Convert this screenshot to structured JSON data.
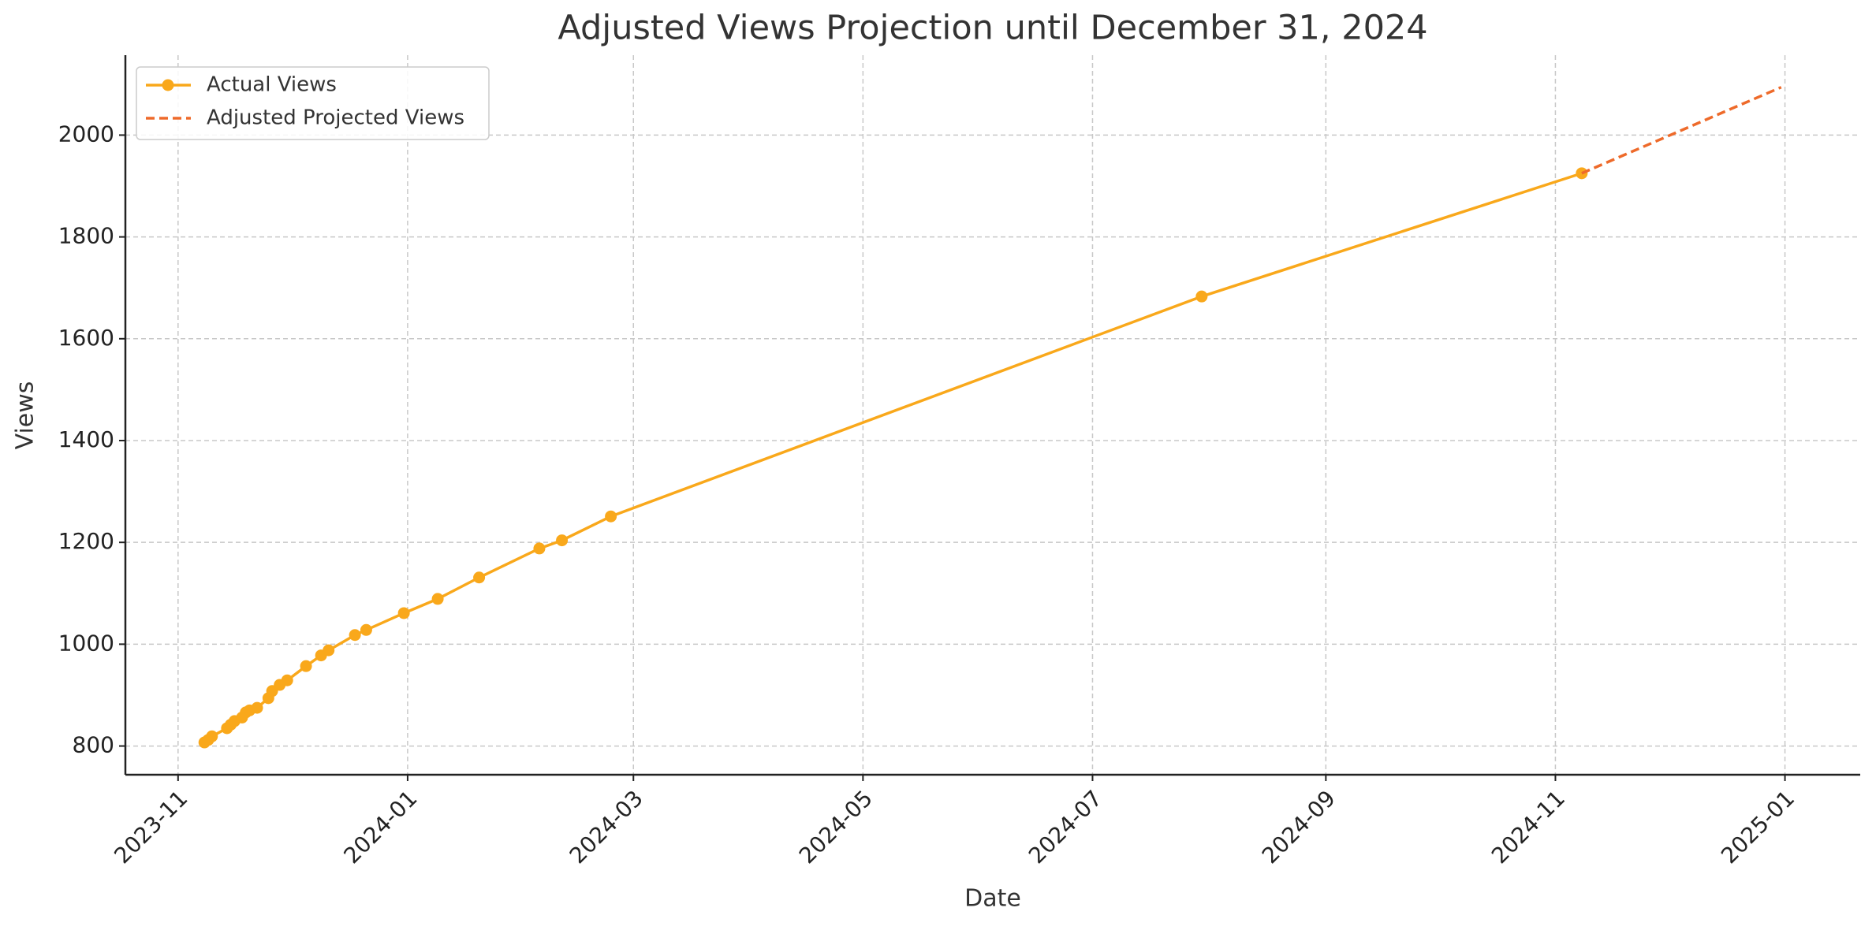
{
  "chart_data": {
    "type": "line",
    "title": "Adjusted Views Projection until December 31, 2024",
    "xlabel": "Date",
    "ylabel": "Views",
    "series": [
      {
        "name": "Actual Views",
        "color": "#f9a81b",
        "style": "solid",
        "marker": true,
        "x": [
          "2023-11-08",
          "2023-11-09",
          "2023-11-10",
          "2023-11-14",
          "2023-11-15",
          "2023-11-16",
          "2023-11-18",
          "2023-11-19",
          "2023-11-20",
          "2023-11-22",
          "2023-11-25",
          "2023-11-26",
          "2023-11-28",
          "2023-11-30",
          "2023-12-05",
          "2023-12-09",
          "2023-12-11",
          "2023-12-18",
          "2023-12-21",
          "2023-12-31",
          "2024-01-09",
          "2024-01-20",
          "2024-02-05",
          "2024-02-11",
          "2024-02-24",
          "2024-07-30",
          "2024-11-08"
        ],
        "values": [
          807,
          812,
          819,
          835,
          842,
          849,
          856,
          866,
          870,
          875,
          894,
          908,
          920,
          929,
          957,
          978,
          988,
          1018,
          1028,
          1061,
          1089,
          1131,
          1188,
          1204,
          1251,
          1683,
          1925
        ]
      },
      {
        "name": "Adjusted Projected Views",
        "color": "#ee6a2a",
        "style": "dashed",
        "marker": false,
        "x": [
          "2024-11-08",
          "2024-12-31"
        ],
        "values": [
          1925,
          2094
        ]
      }
    ],
    "xlim": [
      "2023-10-18",
      "2025-01-21"
    ],
    "xticks": [
      "2023-11",
      "2024-01",
      "2024-03",
      "2024-05",
      "2024-07",
      "2024-09",
      "2024-11",
      "2025-01"
    ],
    "ylim": [
      743.6,
      2157
    ],
    "yticks": [
      800,
      1000,
      1200,
      1400,
      1600,
      1800,
      2000
    ],
    "grid": true,
    "legend": "upper left"
  }
}
